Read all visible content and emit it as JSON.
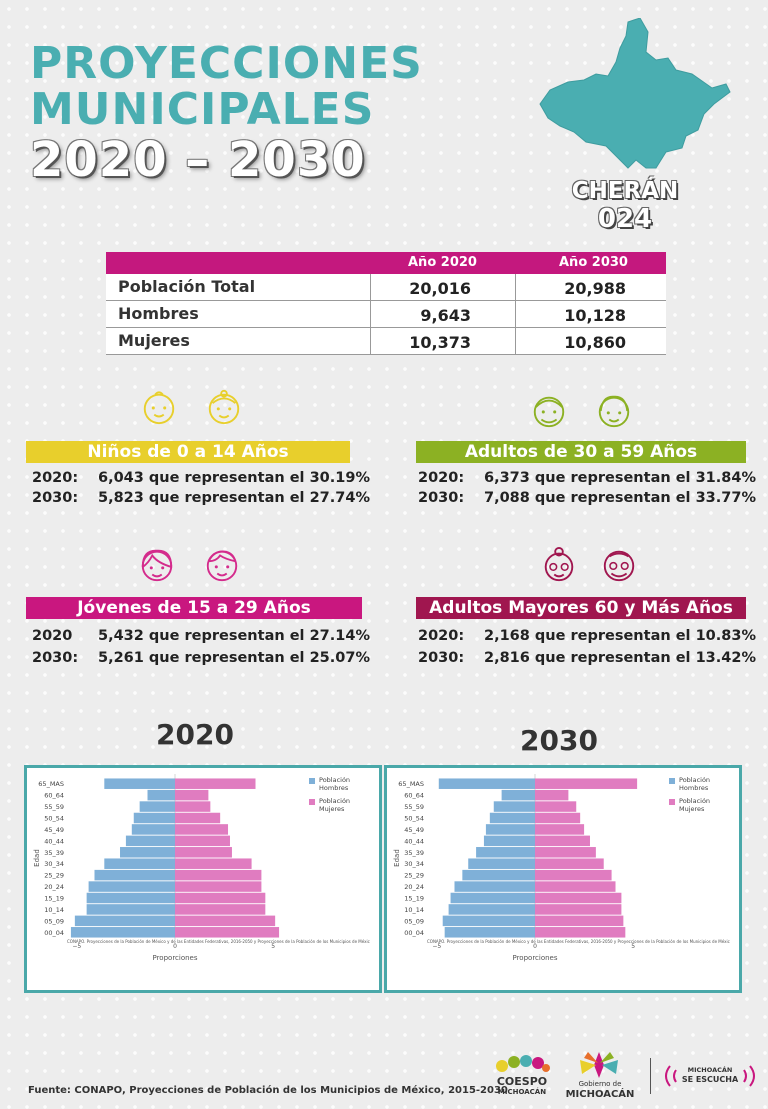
{
  "title": {
    "line1": "PROYECCIONES",
    "line2": "MUNICIPALES",
    "line3": "2020 – 2030"
  },
  "municipality": {
    "name": "CHERÁN",
    "code": "024"
  },
  "table": {
    "col_2020": "Año 2020",
    "col_2030": "Año 2030",
    "rows": [
      {
        "label": "Población Total",
        "y2020": "20,016",
        "y2030": "20,988"
      },
      {
        "label": "Hombres",
        "y2020": "9,643",
        "y2030": "10,128"
      },
      {
        "label": "Mujeres",
        "y2020": "10,373",
        "y2030": "10,860"
      }
    ]
  },
  "groups": {
    "ninos": {
      "title": "Niños de 0 a 14 Años",
      "color": "#e8cf2c",
      "l1_year": "2020:",
      "l1_text": "6,043 que representan el  30.19%",
      "l2_year": "2030:",
      "l2_text": "5,823 que representan el  27.74%"
    },
    "adultos": {
      "title": "Adultos de 30 a 59 Años",
      "color": "#8cb123",
      "l1_year": "2020:",
      "l1_text": "6,373 que representan el  31.84%",
      "l2_year": "2030:",
      "l2_text": "7,088 que representan el  33.77%"
    },
    "jovenes": {
      "title": "Jóvenes de 15 a 29 Años",
      "color": "#c9177f",
      "l1_year": "2020",
      "l1_text": "5,432 que representan el  27.14%",
      "l2_year": "2030:",
      "l2_text": "5,261 que representan el  25.07%"
    },
    "mayores": {
      "title": "Adultos Mayores  60 y Más Años",
      "color": "#a0164f",
      "l1_year": "2020:",
      "l1_text": "2,168 que representan el  10.83%",
      "l2_year": "2030:",
      "l2_text": "2,816 que representan el  13.42%"
    }
  },
  "chart_labels": {
    "year_2020": "2020",
    "year_2030": "2030",
    "ylabel": "Edad",
    "xlabel": "Proporciones",
    "legend_men_1": "Población",
    "legend_men_2": "Hombres",
    "legend_women_1": "Población",
    "legend_women_2": "Mujeres",
    "source_note": "CONAPO. Proyecciones de la Población de México y de las Entidades Federativas, 2016-2050 y Proyecciones de la Población de los Municipios de Méxic"
  },
  "chart_data": [
    {
      "type": "bar",
      "title": "2020",
      "xlabel": "Proporciones",
      "ylabel": "Edad",
      "xlim": [
        -5.5,
        5.5
      ],
      "x_ticks": [
        "−5",
        "0",
        "5"
      ],
      "categories": [
        "00_04",
        "05_09",
        "10_14",
        "15_19",
        "20_24",
        "25_29",
        "30_34",
        "35_39",
        "40_44",
        "45_49",
        "50_54",
        "55_59",
        "60_64",
        "65_MAS"
      ],
      "series": [
        {
          "name": "Población Hombres",
          "color": "#7fb0d8",
          "values": [
            -5.3,
            -5.1,
            -4.5,
            -4.5,
            -4.4,
            -4.1,
            -3.6,
            -2.8,
            -2.5,
            -2.2,
            -2.1,
            -1.8,
            -1.4,
            -3.6
          ]
        },
        {
          "name": "Población Mujeres",
          "color": "#e07cc0",
          "values": [
            5.3,
            5.1,
            4.6,
            4.6,
            4.4,
            4.4,
            3.9,
            2.9,
            2.8,
            2.7,
            2.3,
            1.8,
            1.7,
            4.1
          ]
        }
      ]
    },
    {
      "type": "bar",
      "title": "2030",
      "xlabel": "Proporciones",
      "ylabel": "Edad",
      "xlim": [
        -5.5,
        5.5
      ],
      "x_ticks": [
        "−5",
        "0",
        "5"
      ],
      "categories": [
        "00_04",
        "05_09",
        "10_14",
        "15_19",
        "20_24",
        "25_29",
        "30_34",
        "35_39",
        "40_44",
        "45_49",
        "50_54",
        "55_59",
        "60_64",
        "65_MAS"
      ],
      "series": [
        {
          "name": "Población Hombres",
          "color": "#7fb0d8",
          "values": [
            -4.6,
            -4.7,
            -4.4,
            -4.3,
            -4.1,
            -3.7,
            -3.4,
            -3.0,
            -2.6,
            -2.5,
            -2.3,
            -2.1,
            -1.7,
            -4.9
          ]
        },
        {
          "name": "Población Mujeres",
          "color": "#e07cc0",
          "values": [
            4.6,
            4.5,
            4.4,
            4.4,
            4.1,
            3.9,
            3.5,
            3.1,
            2.8,
            2.5,
            2.3,
            2.1,
            1.7,
            5.2
          ]
        }
      ]
    }
  ],
  "footer": {
    "source": "Fuente: CONAPO, Proyecciones de Población de los Municipios de México, 2015-2030",
    "logo1_a": "COESPO",
    "logo1_b": "MICHOACÁN",
    "logo2_a": "Gobierno de",
    "logo2_b": "MICHOACÁN",
    "logo3_a": "MICHOACÁN",
    "logo3_b": "SE ESCUCHA"
  }
}
